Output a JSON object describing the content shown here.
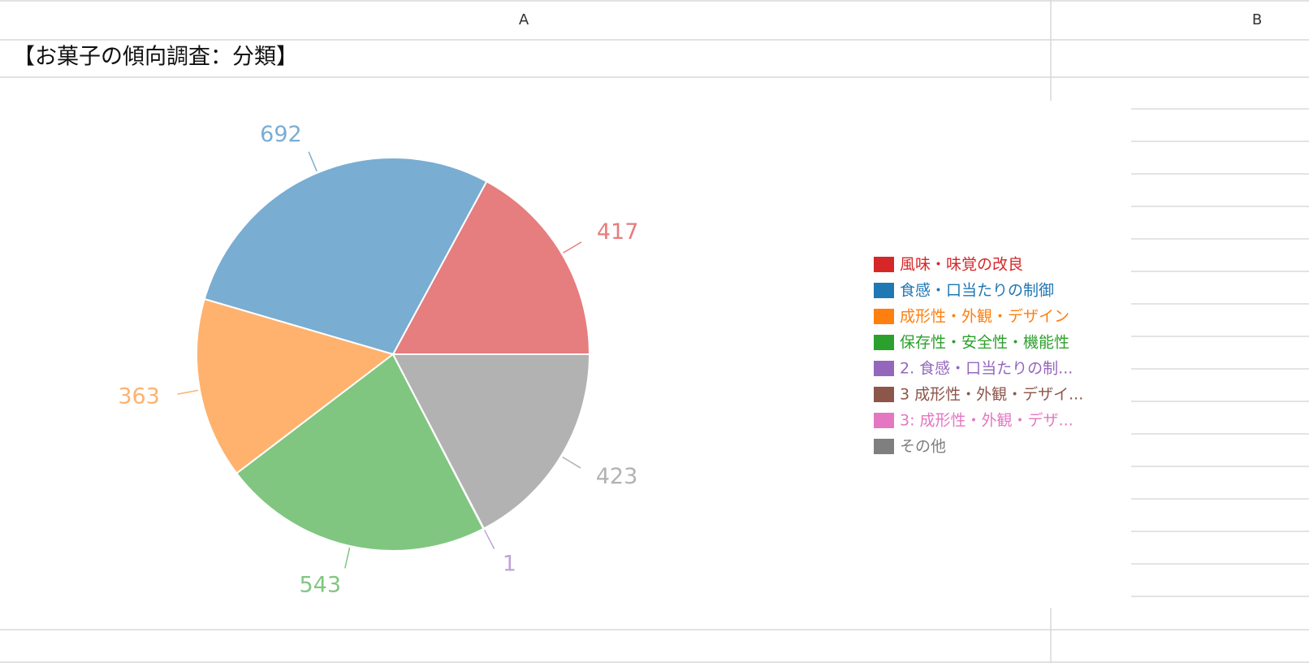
{
  "sheet": {
    "columns": [
      "A",
      "B"
    ],
    "title_cell": "【お菓子の傾向調査：分類】"
  },
  "chart_data": {
    "type": "pie",
    "categories": [
      "風味・味覚の改良",
      "食感・口当たりの制御",
      "成形性・外観・デザイン",
      "保存性・安全性・機能性",
      "2. 食感・口当たりの制...",
      "3 成形性・外観・デザイ...",
      "3: 成形性・外観・デザ...",
      "その他"
    ],
    "values": [
      417,
      692,
      363,
      543,
      1,
      0,
      0,
      423
    ],
    "colors": [
      "#d62728",
      "#1f77b4",
      "#ff7f0e",
      "#2ca02c",
      "#9467bd",
      "#8c564b",
      "#e377c2",
      "#7f7f7f"
    ],
    "legend": "right"
  }
}
